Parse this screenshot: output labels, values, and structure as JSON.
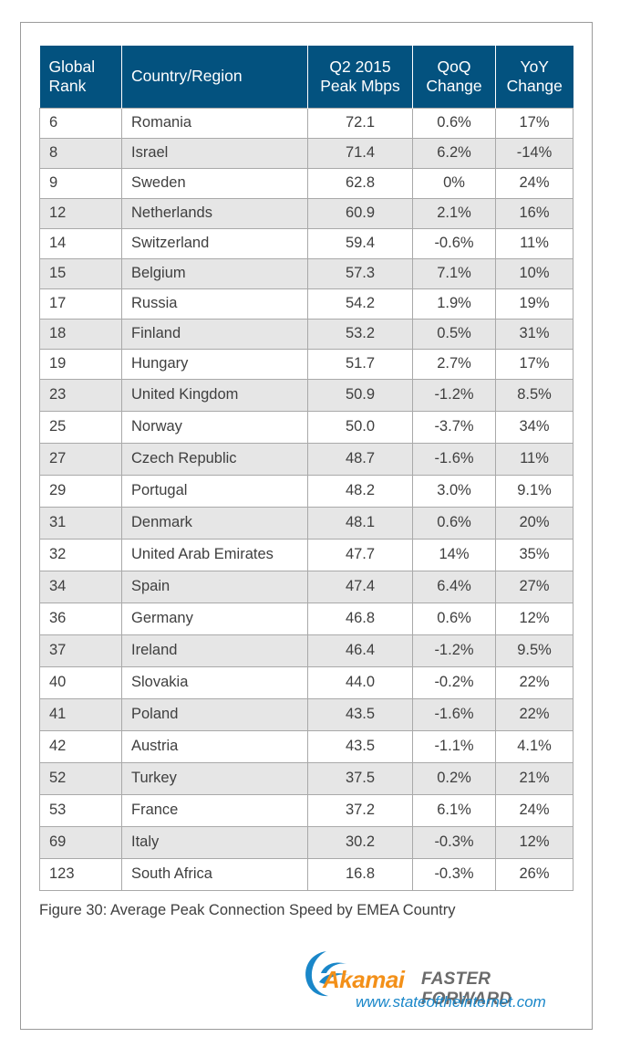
{
  "chart_data": {
    "type": "table",
    "columns": [
      [
        "Global",
        "Rank"
      ],
      [
        "Country/Region"
      ],
      [
        "Q2 2015",
        "Peak Mbps"
      ],
      [
        "QoQ",
        "Change"
      ],
      [
        "YoY",
        "Change"
      ]
    ],
    "rows": [
      [
        "6",
        "Romania",
        "72.1",
        "0.6%",
        "17%"
      ],
      [
        "8",
        "Israel",
        "71.4",
        "6.2%",
        "-14%"
      ],
      [
        "9",
        "Sweden",
        "62.8",
        "0%",
        "24%"
      ],
      [
        "12",
        "Netherlands",
        "60.9",
        "2.1%",
        "16%"
      ],
      [
        "14",
        "Switzerland",
        "59.4",
        "-0.6%",
        "11%"
      ],
      [
        "15",
        "Belgium",
        "57.3",
        "7.1%",
        "10%"
      ],
      [
        "17",
        "Russia",
        "54.2",
        "1.9%",
        "19%"
      ],
      [
        "18",
        "Finland",
        "53.2",
        "0.5%",
        "31%"
      ],
      [
        "19",
        "Hungary",
        "51.7",
        "2.7%",
        "17%"
      ],
      [
        "23",
        "United Kingdom",
        "50.9",
        "-1.2%",
        "8.5%"
      ],
      [
        "25",
        "Norway",
        "50.0",
        "-3.7%",
        "34%"
      ],
      [
        "27",
        "Czech Republic",
        "48.7",
        "-1.6%",
        "11%"
      ],
      [
        "29",
        "Portugal",
        "48.2",
        "3.0%",
        "9.1%"
      ],
      [
        "31",
        "Denmark",
        "48.1",
        "0.6%",
        "20%"
      ],
      [
        "32",
        "United Arab Emirates",
        "47.7",
        "14%",
        "35%"
      ],
      [
        "34",
        "Spain",
        "47.4",
        "6.4%",
        "27%"
      ],
      [
        "36",
        "Germany",
        "46.8",
        "0.6%",
        "12%"
      ],
      [
        "37",
        "Ireland",
        "46.4",
        "-1.2%",
        "9.5%"
      ],
      [
        "40",
        "Slovakia",
        "44.0",
        "-0.2%",
        "22%"
      ],
      [
        "41",
        "Poland",
        "43.5",
        "-1.6%",
        "22%"
      ],
      [
        "42",
        "Austria",
        "43.5",
        "-1.1%",
        "4.1%"
      ],
      [
        "52",
        "Turkey",
        "37.5",
        "0.2%",
        "21%"
      ],
      [
        "53",
        "France",
        "37.2",
        "6.1%",
        "24%"
      ],
      [
        "69",
        "Italy",
        "30.2",
        "-0.3%",
        "12%"
      ],
      [
        "123",
        "South Africa",
        "16.8",
        "-0.3%",
        "26%"
      ]
    ],
    "caption": "Figure 30: Average Peak Connection Speed by EMEA Country"
  },
  "footer": {
    "brand": "Akamai",
    "tagline": "FASTER FORWARD",
    "url": "www.stateoftheinternet.com"
  },
  "colors": {
    "header_bg": "#03527f",
    "stripe": "#e6e6e6",
    "brand_orange": "#f39019",
    "url_blue": "#1a87c9"
  },
  "icons": {
    "logo": "akamai-wave-logo-icon"
  }
}
